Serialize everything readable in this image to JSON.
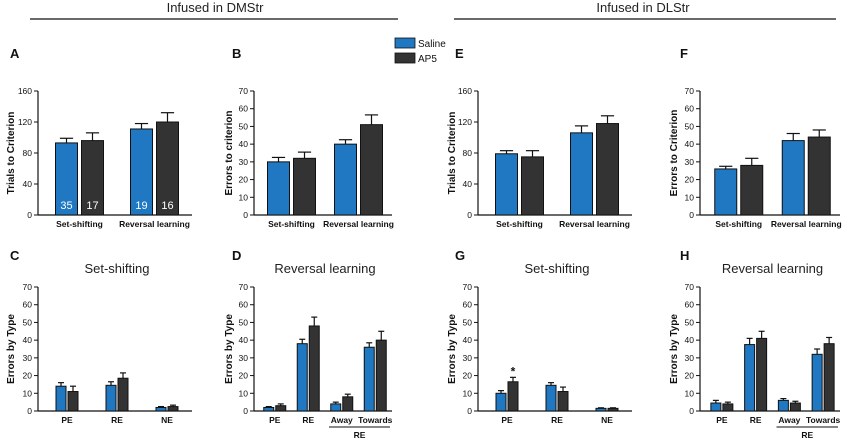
{
  "header": {
    "left": "Infused in DMStr",
    "right": "Infused in DLStr"
  },
  "legend": [
    {
      "name": "Saline",
      "color": "#1f78c1"
    },
    {
      "name": "AP5",
      "color": "#333333"
    }
  ],
  "colors": {
    "saline": "#1f78c1",
    "ap5": "#333333"
  },
  "chart_data": [
    {
      "panel": "A",
      "type": "bar",
      "title": "",
      "ylabel": "Trials to Criterion",
      "ylim": [
        0,
        160
      ],
      "yticks": [
        0,
        40,
        80,
        120,
        160
      ],
      "categories": [
        "Set-shifting",
        "Reversal learning"
      ],
      "group_label": "",
      "series": [
        {
          "name": "Saline",
          "values": [
            93,
            111
          ],
          "errors": [
            6,
            7
          ],
          "n": [
            "35",
            "19"
          ]
        },
        {
          "name": "AP5",
          "values": [
            96,
            120
          ],
          "errors": [
            10,
            12
          ],
          "n": [
            "17",
            "16"
          ]
        }
      ]
    },
    {
      "panel": "B",
      "type": "bar",
      "title": "",
      "ylabel": "Errors to criterion",
      "ylim": [
        0,
        70
      ],
      "yticks": [
        0,
        10,
        20,
        30,
        40,
        50,
        60,
        70
      ],
      "categories": [
        "Set-shifting",
        "Reversal learning"
      ],
      "group_label": "",
      "series": [
        {
          "name": "Saline",
          "values": [
            30,
            40
          ],
          "errors": [
            2.5,
            2.5
          ]
        },
        {
          "name": "AP5",
          "values": [
            32,
            51
          ],
          "errors": [
            3.5,
            5.5
          ]
        }
      ]
    },
    {
      "panel": "E",
      "type": "bar",
      "title": "",
      "ylabel": "Trials to Criterion",
      "ylim": [
        0,
        160
      ],
      "yticks": [
        0,
        40,
        80,
        120,
        160
      ],
      "categories": [
        "Set-shifting",
        "Reversal learning"
      ],
      "group_label": "",
      "series": [
        {
          "name": "Saline",
          "values": [
            79,
            106
          ],
          "errors": [
            4,
            9
          ]
        },
        {
          "name": "AP5",
          "values": [
            75,
            118
          ],
          "errors": [
            8,
            10
          ]
        }
      ]
    },
    {
      "panel": "F",
      "type": "bar",
      "title": "",
      "ylabel": "Errors to Criterion",
      "ylim": [
        0,
        70
      ],
      "yticks": [
        0,
        10,
        20,
        30,
        40,
        50,
        60,
        70
      ],
      "categories": [
        "Set-shifting",
        "Reversal learning"
      ],
      "group_label": "",
      "series": [
        {
          "name": "Saline",
          "values": [
            26,
            42
          ],
          "errors": [
            1.5,
            4
          ]
        },
        {
          "name": "AP5",
          "values": [
            28,
            44
          ],
          "errors": [
            4,
            4
          ]
        }
      ]
    },
    {
      "panel": "C",
      "type": "bar",
      "title": "Set-shifting",
      "ylabel": "Errors by Type",
      "ylim": [
        0,
        70
      ],
      "yticks": [
        0,
        10,
        20,
        30,
        40,
        50,
        60,
        70
      ],
      "categories": [
        "PE",
        "RE",
        "NE"
      ],
      "group_label": "",
      "series": [
        {
          "name": "Saline",
          "values": [
            14,
            14.5,
            2
          ],
          "errors": [
            2,
            2,
            0.5
          ]
        },
        {
          "name": "AP5",
          "values": [
            11,
            18.5,
            2.5
          ],
          "errors": [
            3,
            3,
            0.8
          ]
        }
      ]
    },
    {
      "panel": "D",
      "type": "bar",
      "title": "Reversal learning",
      "ylabel": "Errors by Type",
      "ylim": [
        0,
        70
      ],
      "yticks": [
        0,
        10,
        20,
        30,
        40,
        50,
        60,
        70
      ],
      "categories": [
        "PE",
        "RE",
        "Away",
        "Towards"
      ],
      "group_label": "RE",
      "series": [
        {
          "name": "Saline",
          "values": [
            2,
            38,
            4,
            36
          ],
          "errors": [
            0.5,
            2.5,
            1,
            2.5
          ]
        },
        {
          "name": "AP5",
          "values": [
            3,
            48,
            8,
            40
          ],
          "errors": [
            1,
            5,
            1.5,
            5
          ]
        }
      ]
    },
    {
      "panel": "G",
      "type": "bar",
      "title": "Set-shifting",
      "ylabel": "Errors by Type",
      "ylim": [
        0,
        70
      ],
      "yticks": [
        0,
        10,
        20,
        30,
        40,
        50,
        60,
        70
      ],
      "categories": [
        "PE",
        "RE",
        "NE"
      ],
      "group_label": "",
      "series": [
        {
          "name": "Saline",
          "values": [
            10,
            14.5,
            1.5
          ],
          "errors": [
            1.5,
            1.5,
            0.3
          ]
        },
        {
          "name": "AP5",
          "values": [
            16.5,
            11,
            1.5
          ],
          "errors": [
            2.5,
            2.5,
            0.3
          ]
        }
      ],
      "annotations": [
        {
          "text": "*",
          "category": "PE",
          "series": "AP5"
        }
      ]
    },
    {
      "panel": "H",
      "type": "bar",
      "title": "Reversal learning",
      "ylabel": "Errors by Type",
      "ylim": [
        0,
        70
      ],
      "yticks": [
        0,
        10,
        20,
        30,
        40,
        50,
        60,
        70
      ],
      "categories": [
        "PE",
        "RE",
        "Away",
        "Towards"
      ],
      "group_label": "RE",
      "series": [
        {
          "name": "Saline",
          "values": [
            4.5,
            37.5,
            6,
            32
          ],
          "errors": [
            1.5,
            3.5,
            1,
            3
          ]
        },
        {
          "name": "AP5",
          "values": [
            4,
            41,
            4.5,
            38
          ],
          "errors": [
            1,
            4,
            1,
            3.5
          ]
        }
      ]
    }
  ]
}
